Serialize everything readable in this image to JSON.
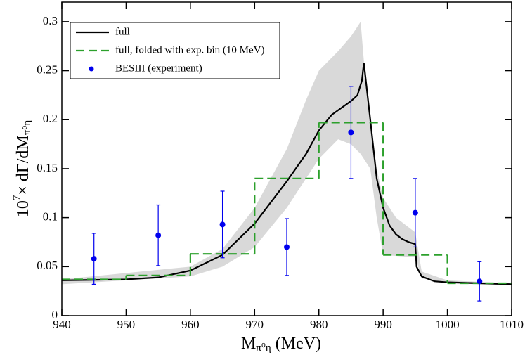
{
  "chart_data": {
    "type": "line",
    "x_label": {
      "main": "M",
      "sub": "π⁰η",
      "unit": "(MeV)"
    },
    "y_label": {
      "base": "10",
      "sup": "7",
      "main": "× dΓ/dM",
      "sub": "π⁰η"
    },
    "xlim": [
      940,
      1010
    ],
    "ylim": [
      0,
      0.32
    ],
    "xticks": [
      940,
      950,
      960,
      970,
      980,
      990,
      1000,
      1010
    ],
    "yticks": [
      0,
      0.05,
      0.1,
      0.15,
      0.2,
      0.25,
      0.3
    ],
    "legend": "upper left",
    "band": {
      "color": "#d9d9d9",
      "x": [
        940,
        960,
        965,
        970,
        975,
        978,
        980,
        983,
        985,
        986.5,
        987,
        988,
        989,
        990,
        992,
        994,
        995,
        996,
        1000,
        1010
      ],
      "upper": [
        0.037,
        0.05,
        0.068,
        0.11,
        0.17,
        0.22,
        0.25,
        0.27,
        0.285,
        0.3,
        0.26,
        0.2,
        0.15,
        0.12,
        0.1,
        0.09,
        0.085,
        0.045,
        0.036,
        0.033
      ],
      "lower": [
        0.032,
        0.04,
        0.05,
        0.07,
        0.11,
        0.14,
        0.16,
        0.18,
        0.175,
        0.165,
        0.16,
        0.15,
        0.1,
        0.062,
        0.061,
        0.06,
        0.06,
        0.038,
        0.033,
        0.031
      ]
    },
    "series": [
      {
        "name": "full",
        "color": "#000000",
        "style": "solid",
        "x": [
          940,
          950,
          955,
          960,
          965,
          970,
          975,
          978,
          980,
          982,
          985,
          986,
          986.7,
          987,
          988,
          989,
          990,
          991,
          992,
          993,
          994,
          995,
          995.2,
          996,
          998,
          1000,
          1010
        ],
        "values": [
          0.036,
          0.037,
          0.039,
          0.046,
          0.062,
          0.094,
          0.137,
          0.165,
          0.189,
          0.205,
          0.219,
          0.225,
          0.24,
          0.258,
          0.2,
          0.14,
          0.11,
          0.092,
          0.083,
          0.078,
          0.075,
          0.073,
          0.05,
          0.04,
          0.035,
          0.034,
          0.032
        ]
      },
      {
        "name": "full, folded with exp. bin (10 MeV)",
        "color": "#2ca02c",
        "style": "dashed",
        "bins": [
          940,
          950,
          960,
          970,
          980,
          990,
          1000,
          1010
        ],
        "values": [
          0.037,
          0.041,
          0.063,
          0.14,
          0.197,
          0.062,
          0.033
        ]
      },
      {
        "name": "BESIII (experiment)",
        "color": "#0000ee",
        "style": "markers",
        "x": [
          945,
          955,
          965,
          975,
          985,
          995,
          1005
        ],
        "values": [
          0.058,
          0.082,
          0.093,
          0.07,
          0.187,
          0.105,
          0.035
        ],
        "errors": [
          0.026,
          0.031,
          0.034,
          0.029,
          0.047,
          0.035,
          0.02
        ]
      }
    ]
  }
}
